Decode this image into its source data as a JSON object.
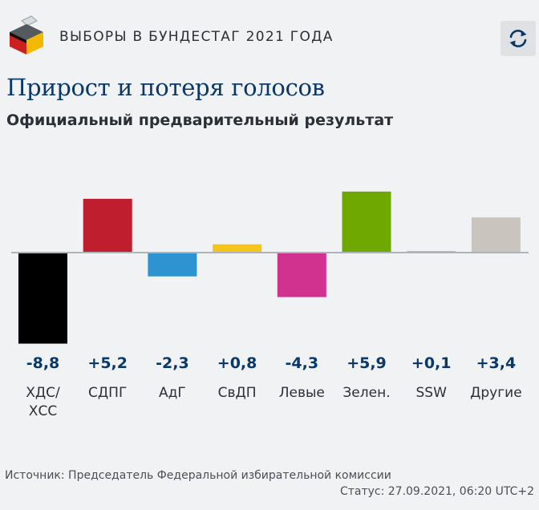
{
  "header": {
    "title": "ВЫБОРЫ В БУНДЕСТАГ 2021 ГОДА",
    "logo_icon": "ballot-box-icon",
    "refresh_icon": "refresh-icon"
  },
  "main_title": "Прирост и потеря голосов",
  "subtitle": "Официальный предварительный результат",
  "chart_data": {
    "type": "bar",
    "categories": [
      [
        "ХДС/",
        "ХСС"
      ],
      [
        "СДПГ"
      ],
      [
        "АдГ"
      ],
      [
        "СвДП"
      ],
      [
        "Левые"
      ],
      [
        "Зелен."
      ],
      [
        "SSW"
      ],
      [
        "Другие"
      ]
    ],
    "values": [
      -8.8,
      5.2,
      -2.3,
      0.8,
      -4.3,
      5.9,
      0.1,
      3.4
    ],
    "value_labels": [
      "-8,8",
      "+5,2",
      "-2,3",
      "+0,8",
      "-4,3",
      "+5,9",
      "+0,1",
      "+3,4"
    ],
    "colors": [
      "#000000",
      "#be1e2d",
      "#2d93d1",
      "#f5c518",
      "#d1318f",
      "#6ea800",
      "#12357d",
      "#c9c5be"
    ],
    "axis_color": "#aeb4bb",
    "value_color": "#0a3868"
  },
  "footer": {
    "source": "Источник: Председатель Федеральной избирательной комиссии",
    "status": "Статус: 27.09.2021, 06:20 UTC+2"
  }
}
